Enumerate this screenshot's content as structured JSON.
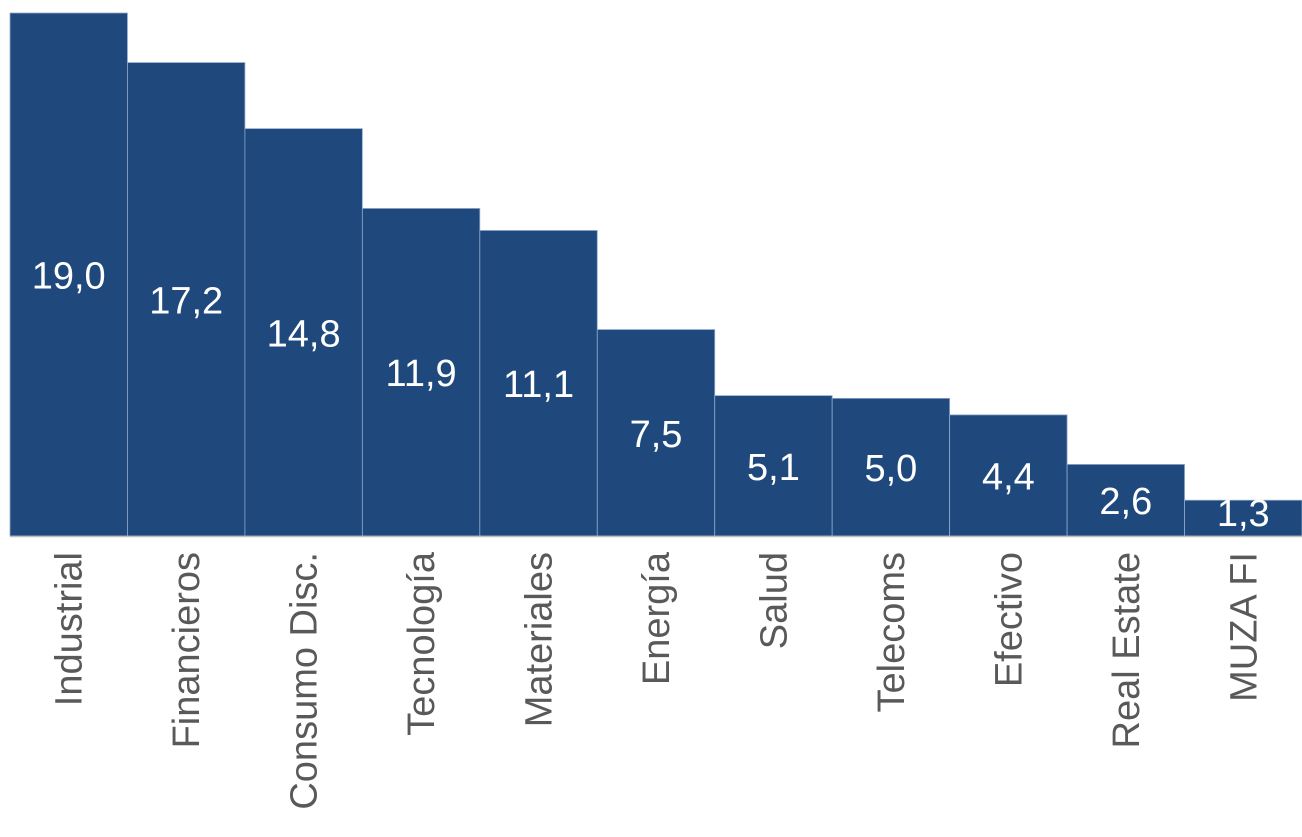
{
  "chart_data": {
    "type": "bar",
    "categories": [
      "Industrial",
      "Financieros",
      "Consumo Disc.",
      "Tecnología",
      "Materiales",
      "Energía",
      "Salud",
      "Telecoms",
      "Efectivo",
      "Real Estate",
      "MUZA FI"
    ],
    "values": [
      19.0,
      17.2,
      14.8,
      11.9,
      11.1,
      7.5,
      5.1,
      5.0,
      4.4,
      2.6,
      1.3
    ],
    "value_labels": [
      "19,0",
      "17,2",
      "14,8",
      "11,9",
      "11,1",
      "7,5",
      "5,1",
      "5,0",
      "4,4",
      "2,6",
      "1,3"
    ],
    "title": "",
    "xlabel": "",
    "ylabel": "",
    "ylim": [
      0,
      19.0
    ],
    "grid": false,
    "legend": "none",
    "colors": {
      "bar": "#1f497d",
      "bar_separator": "#8ea9cc",
      "value_label": "#ffffff",
      "category_label": "#595959",
      "axis": "#bfbfbf"
    }
  }
}
